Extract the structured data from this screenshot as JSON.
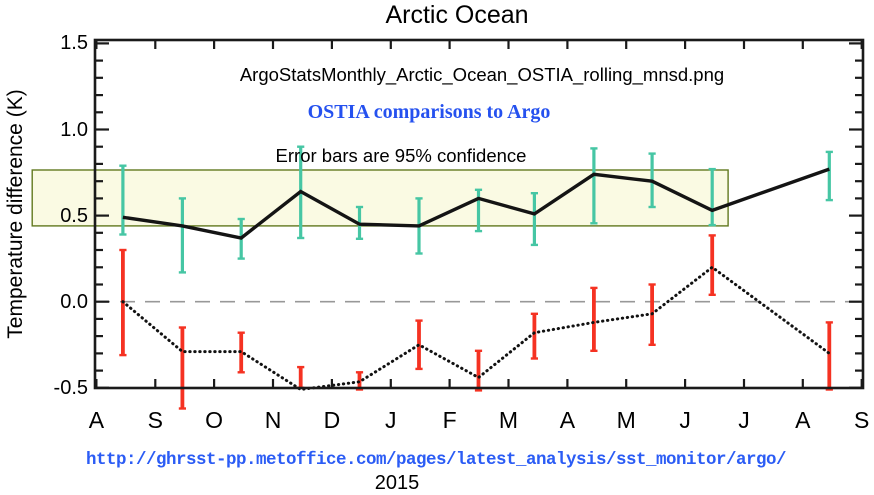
{
  "page": {
    "title": "Arctic Ocean"
  },
  "chart_data": {
    "type": "line",
    "title": "Arctic Ocean",
    "ylabel": "Temperature difference (K)",
    "xlabel": "",
    "annotations": {
      "filename": "ArgoStatsMonthly_Arctic_Ocean_OSTIA_rolling_mnsd.png",
      "subtitle": "OSTIA comparisons to Argo",
      "note": "Error bars are 95% confidence"
    },
    "x_axis": {
      "tick_labels": [
        "A",
        "S",
        "O",
        "N",
        "D",
        "J",
        "F",
        "M",
        "A",
        "M",
        "J",
        "J",
        "A",
        "S"
      ],
      "year_label": "2015",
      "range_months": [
        -0.03,
        13.03
      ]
    },
    "y_axis": {
      "tick_labels": [
        "1.5",
        "1.0",
        "0.5",
        "0.0",
        "-0.5"
      ],
      "tick_values": [
        1.5,
        1.0,
        0.5,
        0.0,
        -0.5
      ],
      "minor_step": 0.1,
      "ylim": [
        -0.5,
        1.52
      ]
    },
    "grid": false,
    "zero_line": true,
    "legend": "none",
    "highlight_box": {
      "x0": -1.09,
      "x1": 10.73,
      "y0": 0.44,
      "y1": 0.765
    },
    "colors": {
      "solid_line": "#141414",
      "solid_ci": "#46c6a4",
      "dotted_line": "#121212",
      "dotted_ci": "#f53222",
      "zero_line": "#989898",
      "frame": "#1a1a1a",
      "highlight_fill": "#fafae3",
      "highlight_edge": "#62791f",
      "subtitle_blue": "#2551ef",
      "url_blue": "#2b5cf5"
    },
    "series": [
      {
        "id": "solid",
        "name": "solid line with teal 95% confidence bars",
        "x_months": [
          0.45,
          1.46,
          2.46,
          3.47,
          4.47,
          5.48,
          6.49,
          7.44,
          8.45,
          9.44,
          10.46,
          12.45
        ],
        "values": [
          0.49,
          0.44,
          0.37,
          0.64,
          0.45,
          0.44,
          0.6,
          0.51,
          0.74,
          0.7,
          0.53,
          0.77
        ],
        "ci_low": [
          0.39,
          0.17,
          0.25,
          0.37,
          0.365,
          0.28,
          0.41,
          0.33,
          0.455,
          0.55,
          0.445,
          0.59
        ],
        "ci_high": [
          0.79,
          0.6,
          0.48,
          0.9,
          0.55,
          0.6,
          0.65,
          0.63,
          0.89,
          0.86,
          0.77,
          0.87
        ]
      },
      {
        "id": "dotted",
        "name": "dotted line with red 95% confidence bars",
        "x_months": [
          0.45,
          1.46,
          2.46,
          3.47,
          4.47,
          5.48,
          6.49,
          7.44,
          8.45,
          9.44,
          10.46,
          12.45
        ],
        "values": [
          0.0,
          -0.29,
          -0.29,
          -0.51,
          -0.465,
          -0.25,
          -0.44,
          -0.18,
          -0.12,
          -0.07,
          0.2,
          -0.3
        ],
        "ci_low": [
          -0.31,
          -0.62,
          -0.41,
          -0.5,
          -0.51,
          -0.39,
          -0.515,
          -0.33,
          -0.285,
          -0.25,
          0.04,
          -0.51
        ],
        "ci_high": [
          0.3,
          -0.15,
          -0.18,
          -0.38,
          -0.41,
          -0.11,
          -0.285,
          -0.07,
          0.08,
          0.1,
          0.385,
          -0.12
        ]
      }
    ]
  },
  "footer": {
    "url": "http://ghrsst-pp.metoffice.com/pages/latest_analysis/sst_monitor/argo/",
    "year": "2015"
  }
}
